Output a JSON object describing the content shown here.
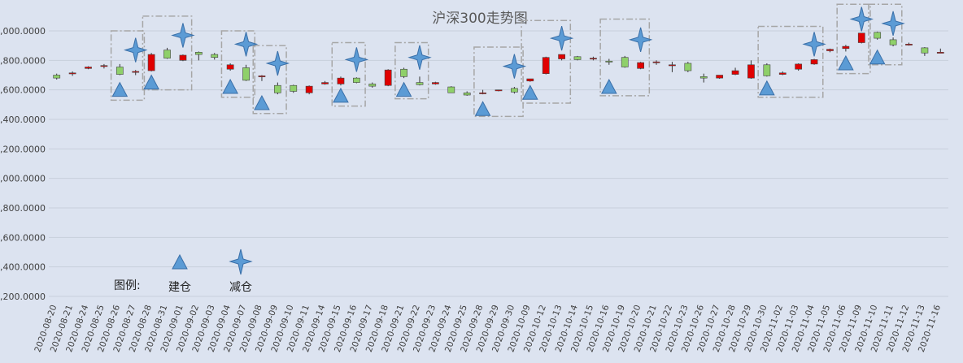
{
  "chart_data": {
    "type": "candlestick",
    "title": "沪深300走势图",
    "ylim": [
      3200,
      5000
    ],
    "yticks": [
      "3,200.0000",
      "3,400.0000",
      "3,600.0000",
      "3,800.0000",
      "4,000.0000",
      "4,200.0000",
      "4,400.0000",
      "4,600.0000",
      "4,800.0000",
      "5,000.0000"
    ],
    "ytick_values": [
      3200,
      3400,
      3600,
      3800,
      4000,
      4200,
      4400,
      4600,
      4800,
      5000
    ],
    "grid": true,
    "colors": {
      "up": "#e00000",
      "down": "#8fd06a",
      "outline": "#444444",
      "wick": "#333333",
      "marker_fill": "#5b9bd5",
      "marker_stroke": "#3a6fa8",
      "box": "#a6a6a6",
      "grid": "#c8cfdc"
    },
    "categories": [
      "2020-08-20",
      "2020-08-21",
      "2020-08-24",
      "2020-08-25",
      "2020-08-26",
      "2020-08-27",
      "2020-08-28",
      "2020-08-31",
      "2020-09-01",
      "2020-09-02",
      "2020-09-03",
      "2020-09-04",
      "2020-09-07",
      "2020-09-08",
      "2020-09-09",
      "2020-09-10",
      "2020-09-11",
      "2020-09-14",
      "2020-09-15",
      "2020-09-16",
      "2020-09-17",
      "2020-09-18",
      "2020-09-21",
      "2020-09-22",
      "2020-09-23",
      "2020-09-24",
      "2020-09-25",
      "2020-09-28",
      "2020-09-29",
      "2020-09-30",
      "2020-10-09",
      "2020-10-12",
      "2020-10-13",
      "2020-10-14",
      "2020-10-15",
      "2020-10-16",
      "2020-10-19",
      "2020-10-20",
      "2020-10-21",
      "2020-10-22",
      "2020-10-23",
      "2020-10-26",
      "2020-10-27",
      "2020-10-28",
      "2020-10-29",
      "2020-10-30",
      "2020-11-02",
      "2020-11-03",
      "2020-11-04",
      "2020-11-05",
      "2020-11-06",
      "2020-11-09",
      "2020-11-10",
      "2020-11-11",
      "2020-11-12",
      "2020-11-13",
      "2020-11-16"
    ],
    "ohlc": [
      [
        4700,
        4710,
        4670,
        4680
      ],
      [
        4712,
        4725,
        4695,
        4715
      ],
      [
        4745,
        4760,
        4740,
        4755
      ],
      [
        4760,
        4775,
        4745,
        4765
      ],
      [
        4755,
        4775,
        4700,
        4705
      ],
      [
        4720,
        4735,
        4700,
        4725
      ],
      [
        4730,
        4850,
        4725,
        4840
      ],
      [
        4870,
        4885,
        4810,
        4815
      ],
      [
        4800,
        4840,
        4795,
        4835
      ],
      [
        4855,
        4860,
        4800,
        4840
      ],
      [
        4840,
        4850,
        4805,
        4820
      ],
      [
        4740,
        4780,
        4730,
        4770
      ],
      [
        4750,
        4770,
        4660,
        4665
      ],
      [
        4690,
        4700,
        4660,
        4695
      ],
      [
        4630,
        4650,
        4570,
        4580
      ],
      [
        4630,
        4635,
        4580,
        4590
      ],
      [
        4580,
        4630,
        4570,
        4625
      ],
      [
        4640,
        4660,
        4635,
        4650
      ],
      [
        4640,
        4690,
        4630,
        4680
      ],
      [
        4680,
        4685,
        4645,
        4650
      ],
      [
        4640,
        4650,
        4615,
        4625
      ],
      [
        4630,
        4740,
        4625,
        4735
      ],
      [
        4740,
        4750,
        4680,
        4690
      ],
      [
        4650,
        4690,
        4630,
        4635
      ],
      [
        4640,
        4655,
        4635,
        4650
      ],
      [
        4620,
        4625,
        4580,
        4580
      ],
      [
        4580,
        4590,
        4560,
        4565
      ],
      [
        4575,
        4600,
        4570,
        4580
      ],
      [
        4595,
        4600,
        4590,
        4600
      ],
      [
        4610,
        4620,
        4575,
        4585
      ],
      [
        4660,
        4675,
        4655,
        4675
      ],
      [
        4710,
        4825,
        4705,
        4820
      ],
      [
        4810,
        4840,
        4800,
        4840
      ],
      [
        4825,
        4830,
        4800,
        4805
      ],
      [
        4810,
        4825,
        4800,
        4815
      ],
      [
        4795,
        4810,
        4770,
        4790
      ],
      [
        4820,
        4830,
        4750,
        4755
      ],
      [
        4745,
        4790,
        4740,
        4785
      ],
      [
        4790,
        4800,
        4770,
        4790
      ],
      [
        4770,
        4790,
        4720,
        4770
      ],
      [
        4780,
        4790,
        4720,
        4730
      ],
      [
        4690,
        4710,
        4650,
        4680
      ],
      [
        4680,
        4700,
        4675,
        4700
      ],
      [
        4705,
        4750,
        4700,
        4730
      ],
      [
        4680,
        4800,
        4675,
        4770
      ],
      [
        4770,
        4780,
        4690,
        4695
      ],
      [
        4705,
        4725,
        4700,
        4715
      ],
      [
        4740,
        4780,
        4730,
        4775
      ],
      [
        4775,
        4810,
        4770,
        4805
      ],
      [
        4865,
        4880,
        4855,
        4875
      ],
      [
        4880,
        4905,
        4860,
        4895
      ],
      [
        4920,
        4985,
        4915,
        4985
      ],
      [
        4990,
        4995,
        4940,
        4950
      ],
      [
        4940,
        4955,
        4895,
        4905
      ],
      [
        4905,
        4920,
        4900,
        4910
      ],
      [
        4885,
        4890,
        4830,
        4850
      ],
      [
        4855,
        4880,
        4850,
        4855
      ]
    ],
    "legend": {
      "title": "图例:",
      "items": [
        {
          "label": "建仓",
          "marker": "triangle"
        },
        {
          "label": "减仓",
          "marker": "star"
        }
      ]
    },
    "buy_markers": [
      {
        "date": "2020-08-26",
        "value": 4600
      },
      {
        "date": "2020-08-28",
        "value": 4650
      },
      {
        "date": "2020-09-04",
        "value": 4620
      },
      {
        "date": "2020-09-08",
        "value": 4510
      },
      {
        "date": "2020-09-15",
        "value": 4560
      },
      {
        "date": "2020-09-21",
        "value": 4600
      },
      {
        "date": "2020-09-28",
        "value": 4470
      },
      {
        "date": "2020-10-09",
        "value": 4580
      },
      {
        "date": "2020-10-16",
        "value": 4620
      },
      {
        "date": "2020-10-30",
        "value": 4610
      },
      {
        "date": "2020-11-06",
        "value": 4780
      },
      {
        "date": "2020-11-10",
        "value": 4820
      }
    ],
    "sell_markers": [
      {
        "date": "2020-08-27",
        "value": 4870
      },
      {
        "date": "2020-09-01",
        "value": 4970
      },
      {
        "date": "2020-09-07",
        "value": 4910
      },
      {
        "date": "2020-09-09",
        "value": 4780
      },
      {
        "date": "2020-09-16",
        "value": 4805
      },
      {
        "date": "2020-09-22",
        "value": 4820
      },
      {
        "date": "2020-09-30",
        "value": 4760
      },
      {
        "date": "2020-10-13",
        "value": 4950
      },
      {
        "date": "2020-10-20",
        "value": 4940
      },
      {
        "date": "2020-11-04",
        "value": 4910
      },
      {
        "date": "2020-11-09",
        "value": 5080
      },
      {
        "date": "2020-11-11",
        "value": 5050
      }
    ],
    "boxes": [
      {
        "from": "2020-08-26",
        "to": "2020-08-27",
        "high": 5000,
        "low": 4530
      },
      {
        "from": "2020-08-28",
        "to": "2020-09-01",
        "high": 5100,
        "low": 4600
      },
      {
        "from": "2020-09-04",
        "to": "2020-09-07",
        "high": 5000,
        "low": 4550
      },
      {
        "from": "2020-09-08",
        "to": "2020-09-09",
        "high": 4900,
        "low": 4440
      },
      {
        "from": "2020-09-15",
        "to": "2020-09-16",
        "high": 4920,
        "low": 4490
      },
      {
        "from": "2020-09-21",
        "to": "2020-09-22",
        "high": 4920,
        "low": 4540
      },
      {
        "from": "2020-09-28",
        "to": "2020-09-30",
        "high": 4890,
        "low": 4420
      },
      {
        "from": "2020-10-09",
        "to": "2020-10-13",
        "high": 5070,
        "low": 4510
      },
      {
        "from": "2020-10-16",
        "to": "2020-10-20",
        "high": 5080,
        "low": 4560
      },
      {
        "from": "2020-10-30",
        "to": "2020-11-04",
        "high": 5030,
        "low": 4550
      },
      {
        "from": "2020-11-06",
        "to": "2020-11-09",
        "high": 5180,
        "low": 4710
      },
      {
        "from": "2020-11-10",
        "to": "2020-11-11",
        "high": 5180,
        "low": 4770
      }
    ]
  }
}
